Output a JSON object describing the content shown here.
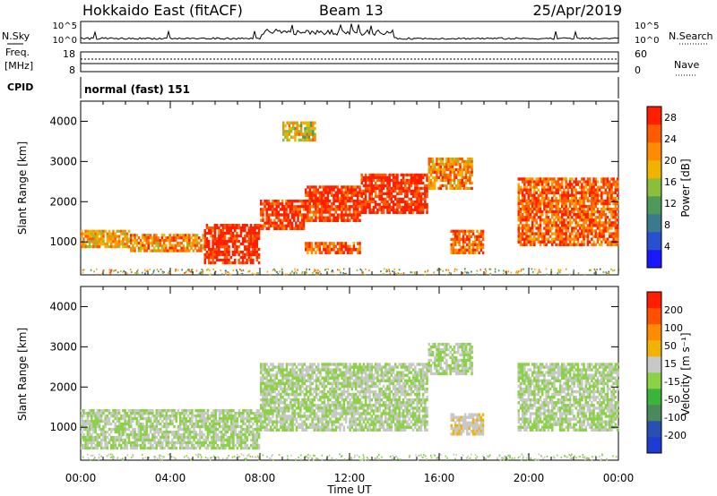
{
  "header": {
    "station": "Hokkaido East (fitACF)",
    "beam": "Beam 13",
    "date": "25/Apr/2019"
  },
  "status_panels": {
    "nsky_label": "N.Sky",
    "nsearch_label": "N.Search",
    "freq_label": "Freq.",
    "freq_unit": "[MHz]",
    "nave_label": "Nave",
    "cpid_label": "CPID",
    "cpid_text": "normal (fast) 151",
    "noise_ticks_left": [
      "10^5",
      "10^0"
    ],
    "noise_ticks_right": [
      "10^5",
      "10^0"
    ],
    "freq_ticks": [
      "18",
      "8"
    ],
    "nave_ticks": [
      "60",
      "0"
    ]
  },
  "chart_data": [
    {
      "type": "heatmap",
      "title": "",
      "panel": "power",
      "ylabel": "Slant Range [km]",
      "xlabel": "Time UT",
      "x_ticks": [
        "00:00",
        "04:00",
        "08:00",
        "12:00",
        "16:00",
        "20:00",
        "00:00"
      ],
      "x_range_hours": [
        0,
        24
      ],
      "y_ticks": [
        1000,
        2000,
        3000,
        4000
      ],
      "ylim": [
        180,
        4500
      ],
      "colorbar": {
        "label": "Power [dB]",
        "ticks": [
          "4",
          "8",
          "12",
          "16",
          "20",
          "24",
          "28"
        ],
        "colors": [
          "#1919ff",
          "#2850d0",
          "#3a7a8e",
          "#4f9a5a",
          "#8cbe3c",
          "#f0b400",
          "#ff8c00",
          "#ff5a00",
          "#ff1e00"
        ],
        "range": [
          0,
          30
        ]
      },
      "regions": [
        {
          "t0": 0.0,
          "t1": 2.2,
          "r0": 850,
          "r1": 1300,
          "power": 20
        },
        {
          "t0": 2.2,
          "t1": 5.5,
          "r0": 750,
          "r1": 1200,
          "power": 22
        },
        {
          "t0": 5.5,
          "t1": 8.0,
          "r0": 450,
          "r1": 1450,
          "power": 29
        },
        {
          "t0": 8.0,
          "t1": 10.0,
          "r0": 1300,
          "r1": 2050,
          "power": 28
        },
        {
          "t0": 10.0,
          "t1": 12.5,
          "r0": 700,
          "r1": 1000,
          "power": 25
        },
        {
          "t0": 10.0,
          "t1": 12.5,
          "r0": 1500,
          "r1": 2400,
          "power": 28
        },
        {
          "t0": 12.5,
          "t1": 15.5,
          "r0": 1700,
          "r1": 2700,
          "power": 29
        },
        {
          "t0": 15.5,
          "t1": 17.5,
          "r0": 2300,
          "r1": 3100,
          "power": 22
        },
        {
          "t0": 9.0,
          "t1": 10.5,
          "r0": 3500,
          "r1": 4000,
          "power": 18
        },
        {
          "t0": 16.5,
          "t1": 18.0,
          "r0": 700,
          "r1": 1300,
          "power": 24
        },
        {
          "t0": 19.5,
          "t1": 24.0,
          "r0": 900,
          "r1": 2600,
          "power": 25
        }
      ]
    },
    {
      "type": "heatmap",
      "title": "",
      "panel": "velocity",
      "ylabel": "Slant Range [km]",
      "xlabel": "Time UT",
      "x_ticks": [
        "00:00",
        "04:00",
        "08:00",
        "12:00",
        "16:00",
        "20:00",
        "00:00"
      ],
      "x_range_hours": [
        0,
        24
      ],
      "y_ticks": [
        1000,
        2000,
        3000,
        4000
      ],
      "ylim": [
        180,
        4500
      ],
      "colorbar": {
        "label": "Velocity [m s⁻¹]",
        "ticks": [
          "200",
          "100",
          "50",
          "15",
          "-15",
          "-50",
          "-100",
          "-200"
        ],
        "colors": [
          "#1e3cd2",
          "#2850b4",
          "#4a8a5a",
          "#3cb43c",
          "#8cd246",
          "#c8c8c8",
          "#f0b400",
          "#ff8c00",
          "#ff5000",
          "#ff1e00"
        ],
        "range": [
          -250,
          250
        ]
      },
      "regions": [
        {
          "t0": 0.0,
          "t1": 8.0,
          "r0": 450,
          "r1": 1450,
          "velocity": 0
        },
        {
          "t0": 8.0,
          "t1": 15.5,
          "r0": 900,
          "r1": 2600,
          "velocity": 0
        },
        {
          "t0": 15.5,
          "t1": 17.5,
          "r0": 2300,
          "r1": 3100,
          "velocity": 0
        },
        {
          "t0": 16.5,
          "t1": 18.0,
          "r0": 800,
          "r1": 1350,
          "velocity": 40
        },
        {
          "t0": 19.5,
          "t1": 24.0,
          "r0": 900,
          "r1": 2600,
          "velocity": 0
        }
      ]
    }
  ]
}
